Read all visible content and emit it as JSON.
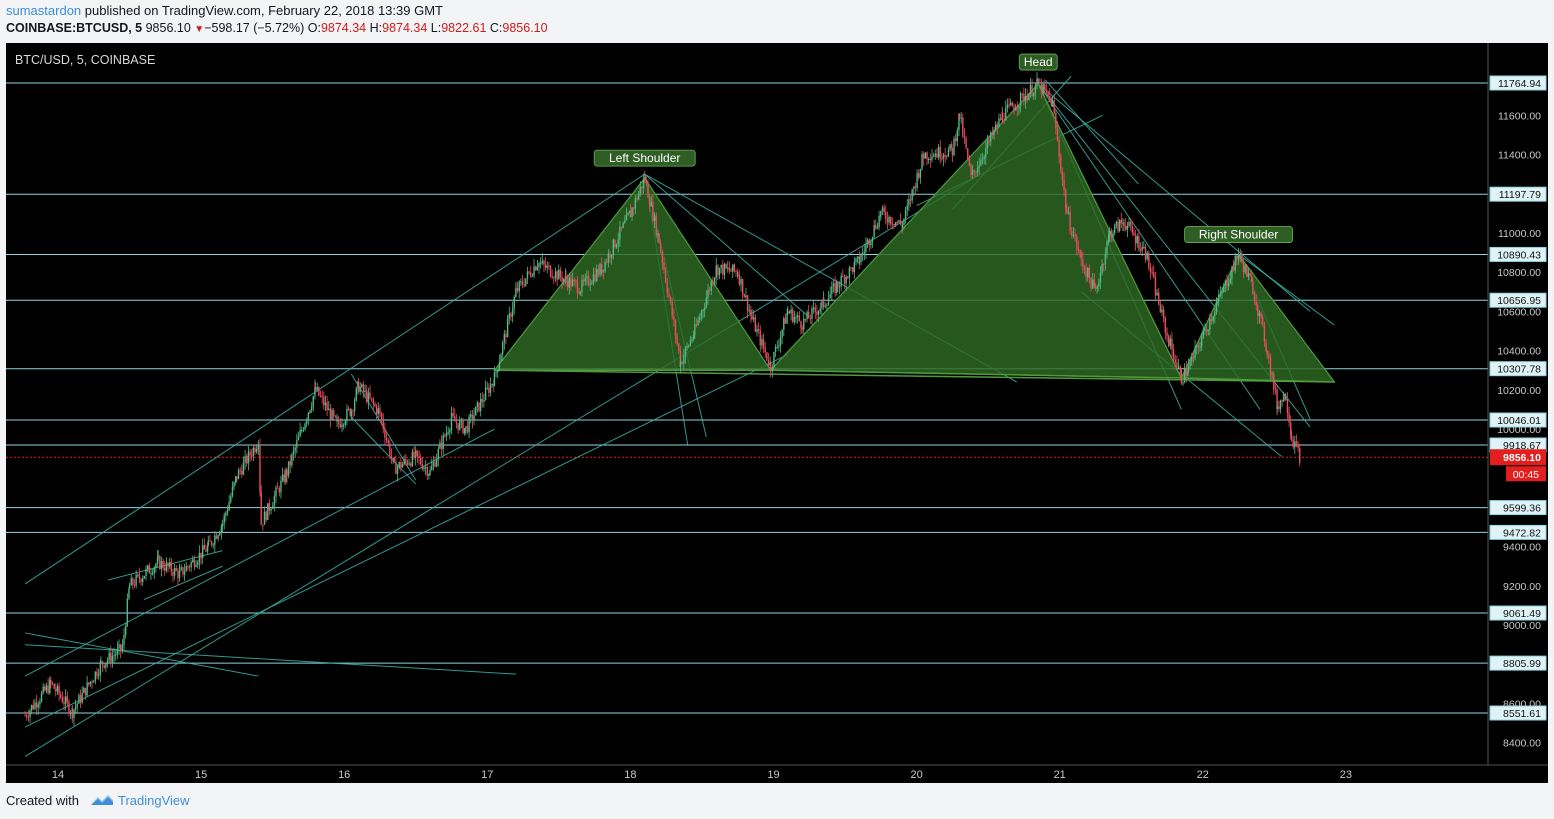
{
  "header": {
    "author": "sumastardon",
    "published_text": "published on TradingView.com, February 22, 2018 13:39 GMT",
    "symbol": "COINBASE:BTCUSD, 5",
    "last_price": "9856.10",
    "arrow": "▼",
    "change": "−598.17 (−5.72%)",
    "open_label": "O:",
    "open": "9874.34",
    "high_label": "H:",
    "high": "9874.34",
    "low_label": "L:",
    "low": "9822.61",
    "close_label": "C:",
    "close": "9856.10"
  },
  "footer": {
    "created_with": "Created with",
    "brand": "TradingView"
  },
  "colors": {
    "background": "#000000",
    "up": "#53b987",
    "down": "#eb4d5c",
    "pattern_fill": "#2e6b23",
    "trendline": "#3cb3a6",
    "hline": "#8fd3df",
    "label_bg": "#2e5e24",
    "price_tag": "#e31e1e"
  },
  "chart_data": {
    "type": "candlestick",
    "title": "BTC/USD, 5, COINBASE",
    "x_tick_labels": [
      "14",
      "15",
      "16",
      "17",
      "18",
      "19",
      "20",
      "21",
      "22",
      "23"
    ],
    "y_tick_labels": [
      "8400.00",
      "8600.00",
      "9000.00",
      "9200.00",
      "9400.00",
      "10000.00",
      "10200.00",
      "10400.00",
      "10600.00",
      "10800.00",
      "11000.00",
      "11400.00",
      "11600.00"
    ],
    "ylim": [
      8280,
      11880
    ],
    "horizontal_levels": [
      "11764.94",
      "11197.79",
      "10890.43",
      "10656.95",
      "10307.78",
      "10046.01",
      "9918.67",
      "9599.36",
      "9472.82",
      "9061.49",
      "8805.99",
      "8551.61"
    ],
    "current_price": {
      "value": "9856.10",
      "countdown": "00:45"
    },
    "pattern_labels": [
      {
        "text": "Left Shoulder",
        "day": 18.1,
        "price": 11290
      },
      {
        "text": "Head",
        "day": 20.85,
        "price": 11780
      },
      {
        "text": "Right Shoulder",
        "day": 22.25,
        "price": 10900
      }
    ],
    "price_path": [
      [
        13.77,
        8540
      ],
      [
        13.95,
        8700
      ],
      [
        14.1,
        8560
      ],
      [
        14.3,
        8800
      ],
      [
        14.45,
        8880
      ],
      [
        14.5,
        9200
      ],
      [
        14.7,
        9320
      ],
      [
        14.85,
        9260
      ],
      [
        15.05,
        9400
      ],
      [
        15.15,
        9520
      ],
      [
        15.25,
        9760
      ],
      [
        15.4,
        9940
      ],
      [
        15.42,
        9520
      ],
      [
        15.6,
        9780
      ],
      [
        15.8,
        10200
      ],
      [
        15.95,
        10020
      ],
      [
        16.05,
        10100
      ],
      [
        16.1,
        10220
      ],
      [
        16.25,
        10080
      ],
      [
        16.35,
        9800
      ],
      [
        16.5,
        9860
      ],
      [
        16.6,
        9780
      ],
      [
        16.75,
        10050
      ],
      [
        16.85,
        10000
      ],
      [
        17.05,
        10260
      ],
      [
        17.2,
        10700
      ],
      [
        17.35,
        10850
      ],
      [
        17.55,
        10760
      ],
      [
        17.65,
        10720
      ],
      [
        17.8,
        10820
      ],
      [
        18.0,
        11100
      ],
      [
        18.1,
        11280
      ],
      [
        18.2,
        10960
      ],
      [
        18.35,
        10340
      ],
      [
        18.45,
        10500
      ],
      [
        18.6,
        10820
      ],
      [
        18.75,
        10800
      ],
      [
        18.85,
        10560
      ],
      [
        18.98,
        10320
      ],
      [
        19.1,
        10600
      ],
      [
        19.2,
        10540
      ],
      [
        19.35,
        10640
      ],
      [
        19.45,
        10740
      ],
      [
        19.6,
        10860
      ],
      [
        19.75,
        11100
      ],
      [
        19.9,
        11040
      ],
      [
        20.05,
        11400
      ],
      [
        20.25,
        11420
      ],
      [
        20.3,
        11600
      ],
      [
        20.38,
        11280
      ],
      [
        20.6,
        11600
      ],
      [
        20.85,
        11760
      ],
      [
        20.95,
        11660
      ],
      [
        21.05,
        11100
      ],
      [
        21.15,
        10860
      ],
      [
        21.25,
        10700
      ],
      [
        21.35,
        11000
      ],
      [
        21.45,
        11060
      ],
      [
        21.6,
        10900
      ],
      [
        21.75,
        10480
      ],
      [
        21.85,
        10260
      ],
      [
        21.9,
        10310
      ],
      [
        22.1,
        10640
      ],
      [
        22.25,
        10890
      ],
      [
        22.35,
        10720
      ],
      [
        22.45,
        10400
      ],
      [
        22.52,
        10120
      ],
      [
        22.58,
        10180
      ],
      [
        22.62,
        9960
      ],
      [
        22.68,
        9856
      ]
    ]
  }
}
